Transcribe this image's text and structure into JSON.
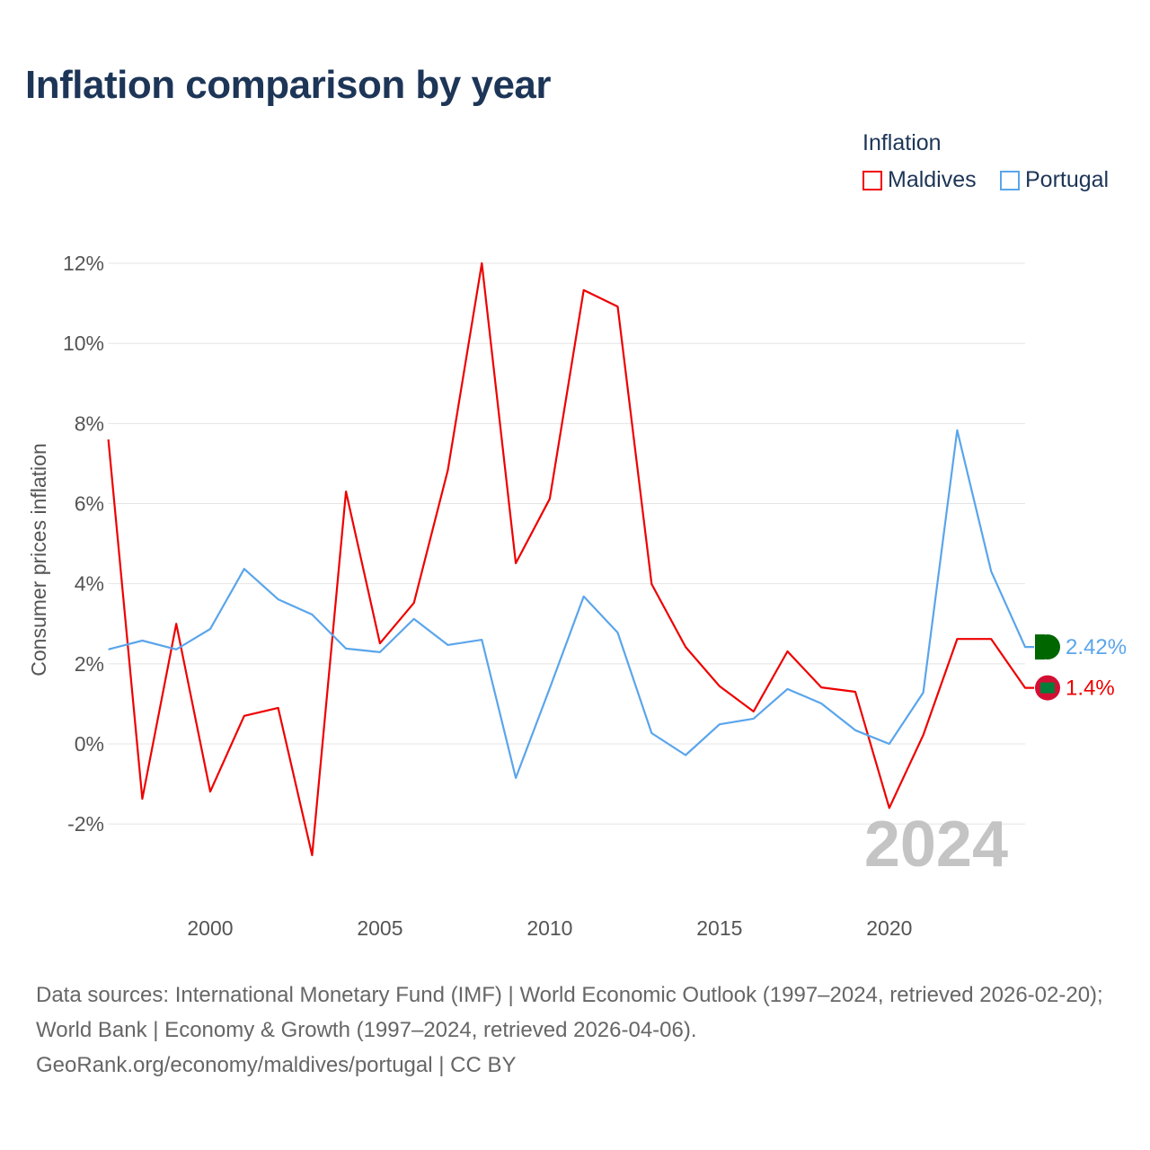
{
  "title": "Inflation comparison by year",
  "legend": {
    "title": "Inflation",
    "items": [
      {
        "label": "Maldives",
        "color": "#ee0000"
      },
      {
        "label": "Portugal",
        "color": "#5aa5eb"
      }
    ]
  },
  "source_lines": [
    "Data sources: International Monetary Fund (IMF) | World Economic Outlook (1997–2024, retrieved 2026-02-20); World Bank | Economy & Growth (1997–2024, retrieved 2026-04-06).",
    "GeoRank.org/economy/maldives/portugal | CC BY"
  ],
  "chart_data": {
    "type": "line",
    "title": "Inflation comparison by year",
    "xlabel": "",
    "ylabel": "Consumer prices inflation",
    "x": [
      1997,
      1998,
      1999,
      2000,
      2001,
      2002,
      2003,
      2004,
      2005,
      2006,
      2007,
      2008,
      2009,
      2010,
      2011,
      2012,
      2013,
      2014,
      2015,
      2016,
      2017,
      2018,
      2019,
      2020,
      2021,
      2022,
      2023,
      2024
    ],
    "xlim": [
      1997,
      2024
    ],
    "ylim": [
      -3.5,
      12.5
    ],
    "xticks": [
      2000,
      2005,
      2010,
      2015,
      2020
    ],
    "yticks": [
      -2,
      0,
      2,
      4,
      6,
      8,
      10,
      12
    ],
    "ytick_labels": [
      "-2%",
      "0%",
      "2%",
      "4%",
      "6%",
      "8%",
      "10%",
      "12%"
    ],
    "grid": true,
    "legend_position": "top-right",
    "current_year_label": "2024",
    "series": [
      {
        "name": "Maldives",
        "color": "#ee0000",
        "end_label": "1.4%",
        "values": [
          7.6,
          -1.37,
          3.0,
          -1.19,
          0.7,
          0.9,
          -2.78,
          6.3,
          2.51,
          3.52,
          6.84,
          12.0,
          4.51,
          6.12,
          11.33,
          10.92,
          3.99,
          2.42,
          1.44,
          0.81,
          2.31,
          1.41,
          1.3,
          -1.6,
          0.22,
          2.62,
          2.62,
          1.4
        ]
      },
      {
        "name": "Portugal",
        "color": "#5aa5eb",
        "end_label": "2.42%",
        "values": [
          2.36,
          2.58,
          2.36,
          2.87,
          4.37,
          3.61,
          3.23,
          2.38,
          2.29,
          3.12,
          2.47,
          2.6,
          -0.85,
          1.39,
          3.68,
          2.78,
          0.27,
          -0.28,
          0.49,
          0.63,
          1.37,
          1.01,
          0.34,
          0.0,
          1.28,
          7.83,
          4.31,
          2.42
        ]
      }
    ]
  }
}
